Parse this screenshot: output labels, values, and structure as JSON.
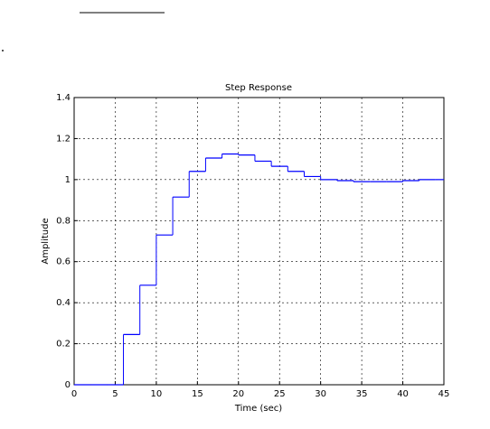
{
  "chart_data": {
    "type": "stairs",
    "title": "Step Response",
    "x_label": "Time (sec)",
    "y_label": "Amplitude",
    "x": [
      0,
      2,
      4,
      6,
      8,
      10,
      12,
      14,
      16,
      18,
      20,
      22,
      24,
      26,
      28,
      30,
      32,
      34,
      36,
      38,
      40,
      42,
      44
    ],
    "series": [
      {
        "color": "#0000ff",
        "values": [
          0,
          0,
          0,
          0.245,
          0.485,
          0.73,
          0.915,
          1.04,
          1.105,
          1.125,
          1.12,
          1.09,
          1.065,
          1.04,
          1.015,
          1.0,
          0.995,
          0.99,
          0.99,
          0.99,
          0.995,
          1.0,
          1.0
        ]
      }
    ],
    "xlim": [
      0,
      45
    ],
    "xticks": [
      0,
      5,
      10,
      15,
      20,
      25,
      30,
      35,
      40,
      45
    ],
    "ylim": [
      0,
      1.4
    ],
    "yticks": [
      0,
      0.2,
      0.4,
      0.6,
      0.8,
      1,
      1.2,
      1.4
    ],
    "grid": true
  }
}
